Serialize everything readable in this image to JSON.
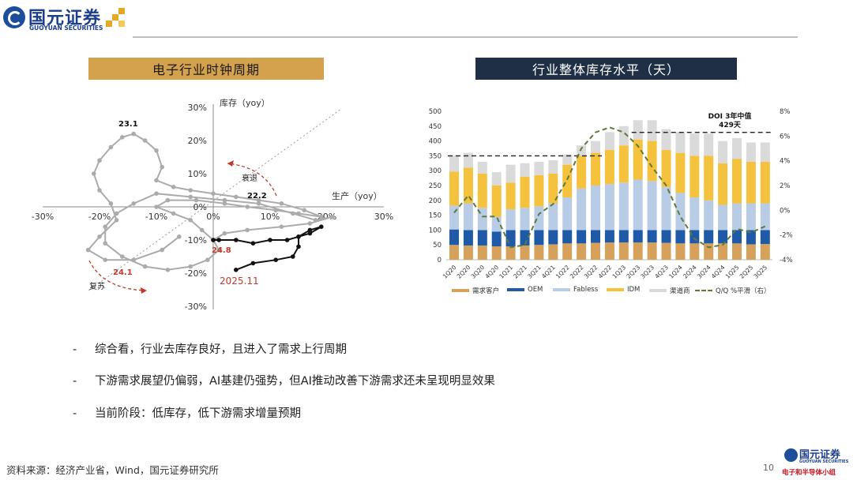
{
  "header": {
    "logo_cn": "国元证券",
    "logo_en": "GUOYUAN SECURITIES"
  },
  "colors": {
    "brand_blue": "#1C3F8C",
    "gold": "#D4A24C",
    "navy": "#1F2F45",
    "red_label": "#C0392B"
  },
  "bullets": [
    "综合看，行业去库存良好，且进入了需求上行周期",
    "下游需求展望仍偏弱，AI基建仍强势，但AI推动改善下游需求还未呈现明显效果",
    "当前阶段：低库存，低下游需求增量预期"
  ],
  "bullet_marker": "-",
  "footer": {
    "source": "资料来源：经济产业省，Wind，国元证券研究所",
    "page": "10",
    "logo_cn": "国元证券",
    "logo_en": "GUOYUAN SECURITIES",
    "group": "电子和半导体小组"
  },
  "chart_data": [
    {
      "type": "line",
      "title": "电子行业时钟周期",
      "xlabel": "生产（yoy）",
      "ylabel": "库存（yoy）",
      "xlim": [
        -30,
        30
      ],
      "ylim": [
        -30,
        30
      ],
      "x_ticks": [
        "-30%",
        "-20%",
        "-10%",
        "0%",
        "10%",
        "20%",
        "30%"
      ],
      "y_ticks": [
        "30%",
        "20%",
        "10%",
        "0%",
        "-10%",
        "-20%",
        "-30%"
      ],
      "grid": false,
      "series": [
        {
          "color": "#ABABAB",
          "points": [
            [
              -6,
              -9
            ],
            [
              -9,
              -13
            ],
            [
              -14,
              -16
            ],
            [
              -19,
              -16
            ],
            [
              -22,
              -13
            ],
            [
              -20,
              -9
            ],
            [
              -17,
              -4
            ],
            [
              -18,
              1
            ],
            [
              -20,
              5
            ],
            [
              -21,
              10
            ],
            [
              -20,
              14
            ],
            [
              -18,
              18
            ],
            [
              -16,
              21
            ],
            [
              -14,
              22
            ],
            [
              -12,
              20
            ],
            [
              -10,
              17
            ],
            [
              -9,
              12
            ],
            [
              -10,
              8
            ],
            [
              -7,
              6
            ],
            [
              -4,
              5
            ],
            [
              0,
              4
            ],
            [
              4,
              3
            ],
            [
              8,
              2
            ],
            [
              12,
              1
            ],
            [
              16,
              -1
            ],
            [
              19,
              -3
            ],
            [
              15,
              -2
            ],
            [
              11,
              -1
            ],
            [
              6,
              0
            ],
            [
              2,
              1
            ],
            [
              -3,
              2
            ],
            [
              -8,
              2
            ],
            [
              -10,
              0
            ],
            [
              -7,
              -2
            ],
            [
              -4,
              -4
            ],
            [
              -2,
              -7
            ],
            [
              0,
              -10
            ],
            [
              1,
              -13
            ],
            [
              -1,
              -16
            ],
            [
              -4,
              -18
            ],
            [
              -8,
              -19
            ],
            [
              -12,
              -18
            ],
            [
              -16,
              -15
            ],
            [
              -19,
              -11
            ],
            [
              -19,
              -6
            ],
            [
              -17,
              -2
            ],
            [
              -14,
              1
            ],
            [
              -10,
              4
            ],
            [
              -4,
              3
            ],
            [
              2,
              2
            ],
            [
              8,
              1
            ],
            [
              14,
              -2
            ],
            [
              18,
              -4
            ],
            [
              21,
              -3
            ],
            [
              17,
              -5
            ],
            [
              12,
              -6
            ],
            [
              6,
              -7
            ],
            [
              2,
              -8
            ],
            [
              0,
              -10
            ]
          ]
        },
        {
          "color": "#111111",
          "points": [
            [
              0,
              -10
            ],
            [
              1,
              -10
            ],
            [
              4,
              -10
            ],
            [
              7,
              -11
            ],
            [
              10,
              -10
            ],
            [
              13,
              -10
            ],
            [
              15,
              -9
            ],
            [
              17,
              -7
            ],
            [
              19,
              -6
            ],
            [
              17,
              -8
            ],
            [
              15,
              -9
            ],
            [
              15,
              -12
            ],
            [
              14,
              -15
            ],
            [
              11,
              -16
            ],
            [
              7,
              -17
            ],
            [
              4,
              -19
            ]
          ]
        }
      ],
      "annotations": [
        "23.1",
        "22.2",
        "24.8",
        "24.1",
        "2025.11",
        "衰退",
        "复苏"
      ]
    },
    {
      "type": "bar",
      "stacked": true,
      "title": "行业整体库存水平（天）",
      "categories": [
        "1Q20",
        "2Q20",
        "3Q20",
        "4Q20",
        "1Q21",
        "2Q21",
        "3Q21",
        "4Q21",
        "1Q22",
        "2Q22",
        "3Q22",
        "4Q22",
        "1Q23",
        "2Q23",
        "3Q23",
        "4Q23",
        "1Q24",
        "2Q24",
        "3Q24",
        "4Q24",
        "1Q25",
        "2Q25",
        "3Q25"
      ],
      "ylim": [
        0,
        500
      ],
      "y_ticks": [
        "500",
        "450",
        "400",
        "350",
        "300",
        "250",
        "200",
        "150",
        "100",
        "50",
        "0"
      ],
      "y2lim": [
        -4,
        8
      ],
      "y2_ticks": [
        "8%",
        "6%",
        "4%",
        "2%",
        "0%",
        "-2%",
        "-4%"
      ],
      "series": [
        {
          "name": "需求客户",
          "color": "#D6A15A",
          "values": [
            50,
            48,
            48,
            45,
            45,
            48,
            50,
            52,
            55,
            55,
            57,
            58,
            58,
            58,
            58,
            57,
            55,
            55,
            55,
            55,
            55,
            52,
            53
          ]
        },
        {
          "name": "OEM",
          "color": "#1E5AA8",
          "values": [
            52,
            52,
            52,
            50,
            55,
            52,
            50,
            48,
            45,
            45,
            43,
            42,
            42,
            42,
            42,
            43,
            45,
            45,
            45,
            45,
            45,
            48,
            47
          ]
        },
        {
          "name": "Fabless",
          "color": "#B9CCE6",
          "values": [
            80,
            90,
            75,
            50,
            70,
            75,
            80,
            90,
            110,
            140,
            150,
            155,
            160,
            170,
            165,
            145,
            125,
            110,
            100,
            85,
            90,
            90,
            90
          ]
        },
        {
          "name": "IDM",
          "color": "#F4C23C",
          "values": [
            115,
            120,
            115,
            105,
            90,
            105,
            105,
            100,
            110,
            110,
            110,
            115,
            125,
            135,
            135,
            125,
            135,
            140,
            150,
            140,
            150,
            140,
            140
          ]
        },
        {
          "name": "渠道商",
          "color": "#DADADA",
          "values": [
            55,
            50,
            40,
            45,
            60,
            45,
            45,
            45,
            35,
            35,
            40,
            60,
            65,
            65,
            70,
            70,
            70,
            75,
            75,
            75,
            70,
            65,
            65
          ]
        }
      ],
      "line_series": {
        "name": "Q/Q %平滑（右）",
        "color": "#5E7A3A",
        "axis": "right",
        "values": [
          -0.2,
          1.2,
          -0.5,
          -0.5,
          -3,
          -2.8,
          -0.3,
          0.5,
          2.5,
          5,
          6.3,
          6.7,
          6.3,
          5.2,
          3.5,
          2,
          -0.5,
          -2.3,
          -3,
          -2.8,
          -1.5,
          -1.8,
          -1.3
        ]
      },
      "reference_lines": [
        {
          "value": 350,
          "from": "1Q20",
          "to": "3Q22"
        },
        {
          "value": 429,
          "from": "2Q23",
          "to": "3Q25"
        }
      ],
      "annotation_lines": [
        "DOI 3年中值",
        "429天"
      ]
    }
  ]
}
